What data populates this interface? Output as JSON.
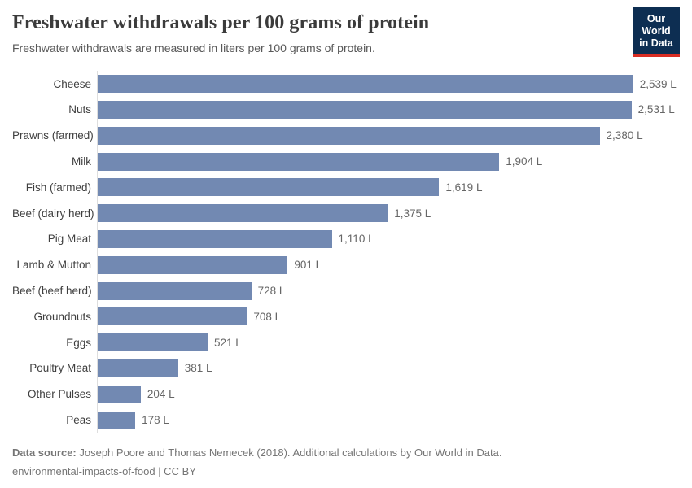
{
  "header": {
    "title": "Freshwater withdrawals per 100 grams of protein",
    "subtitle": "Freshwater withdrawals are measured in liters per 100 grams of protein.",
    "logo": {
      "line1": "Our World",
      "line2": "in Data",
      "bg_color": "#0d2e52",
      "accent_color": "#d92d23"
    }
  },
  "chart_data": {
    "type": "bar",
    "orientation": "horizontal",
    "title": "Freshwater withdrawals per 100 grams of protein",
    "xlabel": "",
    "ylabel": "",
    "unit": "liters per 100 grams of protein",
    "grid": false,
    "legend": "none",
    "categories": [
      "Cheese",
      "Nuts",
      "Prawns (farmed)",
      "Milk",
      "Fish (farmed)",
      "Beef (dairy herd)",
      "Pig Meat",
      "Lamb & Mutton",
      "Beef (beef herd)",
      "Groundnuts",
      "Eggs",
      "Poultry Meat",
      "Other Pulses",
      "Peas"
    ],
    "values": [
      2539,
      2531,
      2380,
      1904,
      1619,
      1375,
      1110,
      901,
      728,
      708,
      521,
      381,
      204,
      178
    ],
    "value_labels": [
      "2,539 L",
      "2,531 L",
      "2,380 L",
      "1,904 L",
      "1,619 L",
      "1,375 L",
      "1,110 L",
      "901 L",
      "728 L",
      "708 L",
      "521 L",
      "381 L",
      "204 L",
      "178 L"
    ],
    "xlim": [
      0,
      2760
    ],
    "bar_color": "#7289b2",
    "axis_line_color": "#dedede"
  },
  "footer": {
    "data_source_label": "Data source:",
    "data_source_text": " Joseph Poore and Thomas Nemecek (2018). Additional calculations by Our World in Data.",
    "line2": "environmental-impacts-of-food | CC BY"
  }
}
